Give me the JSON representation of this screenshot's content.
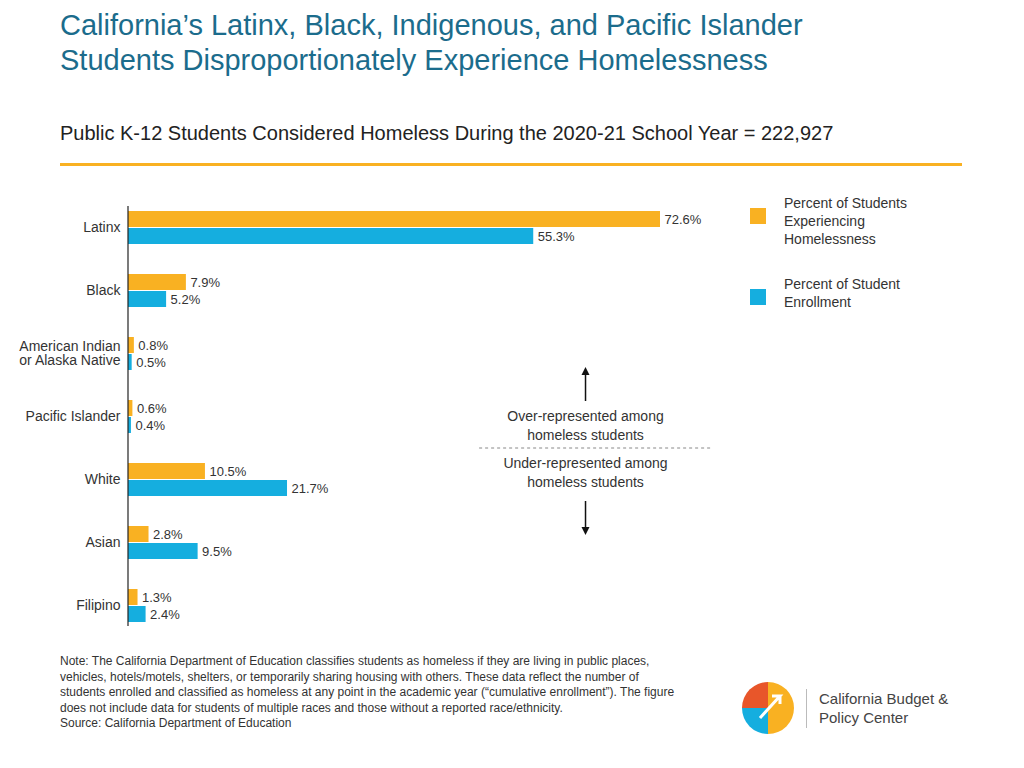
{
  "chart_data": {
    "type": "bar",
    "orientation": "horizontal",
    "title": "California’s Latinx, Black, Indigenous, and Pacific Islander Students Disproportionately Experience Homelessness",
    "subtitle": "Public K-12 Students Considered Homeless During the 2020-21 School Year = 222,927",
    "categories": [
      "Latinx",
      "Black",
      "American Indian or Alaska Native",
      "Pacific Islander",
      "White",
      "Asian",
      "Filipino"
    ],
    "series": [
      {
        "name": "Percent of Students Experiencing Homelessness",
        "color": "#F9B122",
        "values": [
          72.6,
          7.9,
          0.8,
          0.6,
          10.5,
          2.8,
          1.3
        ],
        "value_labels": [
          "72.6%",
          "7.9%",
          "0.8%",
          "0.6%",
          "10.5%",
          "2.8%",
          "1.3%"
        ]
      },
      {
        "name": "Percent of Student Enrollment",
        "color": "#15AEDF",
        "values": [
          55.3,
          5.2,
          0.5,
          0.4,
          21.7,
          9.5,
          2.4
        ],
        "value_labels": [
          "55.3%",
          "5.2%",
          "0.5%",
          "0.4%",
          "21.7%",
          "9.5%",
          "2.4%"
        ]
      }
    ],
    "xlim": [
      0,
      72.6
    ],
    "tick_labels": "y",
    "data_labels": true,
    "legend": "right",
    "annotations": [
      "Over-represented among homeless students",
      "Under-represented among homeless students"
    ],
    "note": "Note: The California Department of Education classifies students as homeless if they are living in public places, vehicles, hotels/motels, shelters, or temporarily sharing housing with others. These data reflect the number of students enrolled and classified as homeless at any point in the academic year (“cumulative enrollment”). The figure does not include data for students of multiple races and those without a reported race/ethnicity.",
    "source": "Source: California Department of Education",
    "logo": "California Budget & Policy Center"
  }
}
